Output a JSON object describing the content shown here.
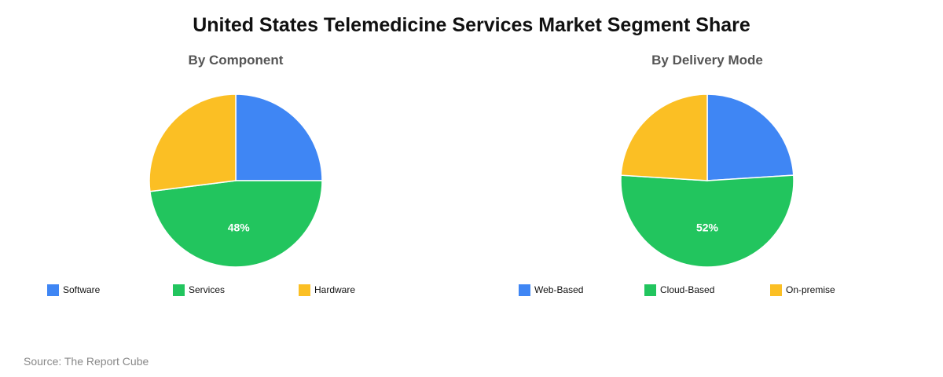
{
  "title": "United States Telemedicine Services Market Segment Share",
  "source": "Source: The Report Cube",
  "chart_data": [
    {
      "type": "pie",
      "title": "By Component",
      "categories": [
        "Software",
        "Services",
        "Hardware"
      ],
      "values": [
        25,
        48,
        27
      ],
      "colors": [
        "#3f86f4",
        "#22c55e",
        "#fbbf24"
      ],
      "data_labels": [
        "",
        "48%",
        ""
      ],
      "start_angle_deg": 0,
      "legend": "bottom"
    },
    {
      "type": "pie",
      "title": "By Delivery Mode",
      "categories": [
        "Web-Based",
        "Cloud-Based",
        "On-premise"
      ],
      "values": [
        24,
        52,
        24
      ],
      "colors": [
        "#3f86f4",
        "#22c55e",
        "#fbbf24"
      ],
      "data_labels": [
        "",
        "52%",
        ""
      ],
      "start_angle_deg": 0,
      "legend": "bottom"
    }
  ]
}
